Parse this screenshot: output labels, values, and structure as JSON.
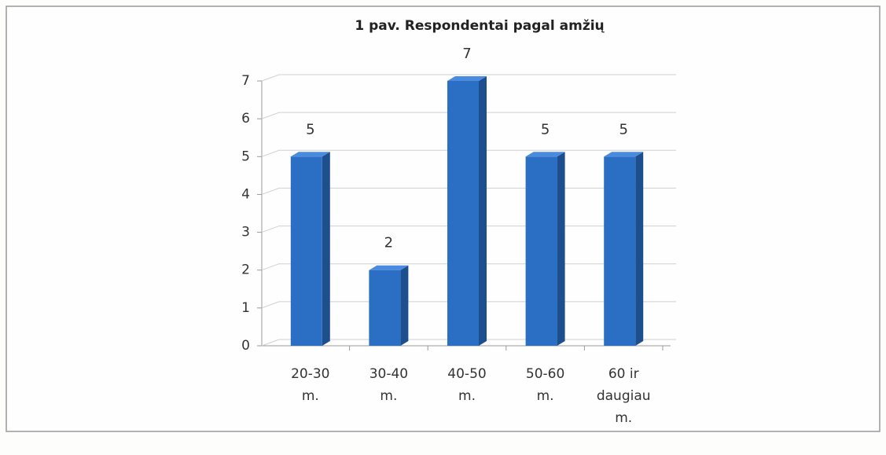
{
  "chart_data": {
    "type": "bar3d",
    "title": "1 pav. Respondentai pagal amžių",
    "categories": [
      "20-30 m.",
      "30-40 m.",
      "40-50 m.",
      "50-60 m.",
      "60 ir daugiau m."
    ],
    "values": [
      5,
      2,
      7,
      5,
      5
    ],
    "color": "#2a6fc4",
    "ylim": [
      0,
      7
    ],
    "yticks": [
      0,
      1,
      2,
      3,
      4,
      5,
      6,
      7
    ],
    "grid": true
  }
}
